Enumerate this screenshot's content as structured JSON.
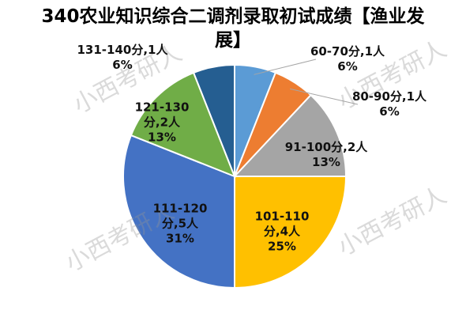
{
  "chart_data": {
    "type": "pie",
    "title": "340农业知识综合二调剂录取初试成绩【渔业发展】",
    "categories": [
      "60-70分,1人",
      "80-90分,1人",
      "91-100分,2人",
      "101-110分,4人",
      "111-120分,5人",
      "121-130分,2人",
      "131-140分,1人"
    ],
    "values": [
      6,
      6,
      13,
      25,
      31,
      13,
      6
    ],
    "value_labels": [
      "6%",
      "6%",
      "13%",
      "25%",
      "31%",
      "13%",
      "6%"
    ],
    "colors": [
      "#5b9bd5",
      "#ed7d31",
      "#a5a5a5",
      "#ffc000",
      "#4472c4",
      "#70ad47",
      "#255e91"
    ],
    "watermark": "小西考研人"
  }
}
